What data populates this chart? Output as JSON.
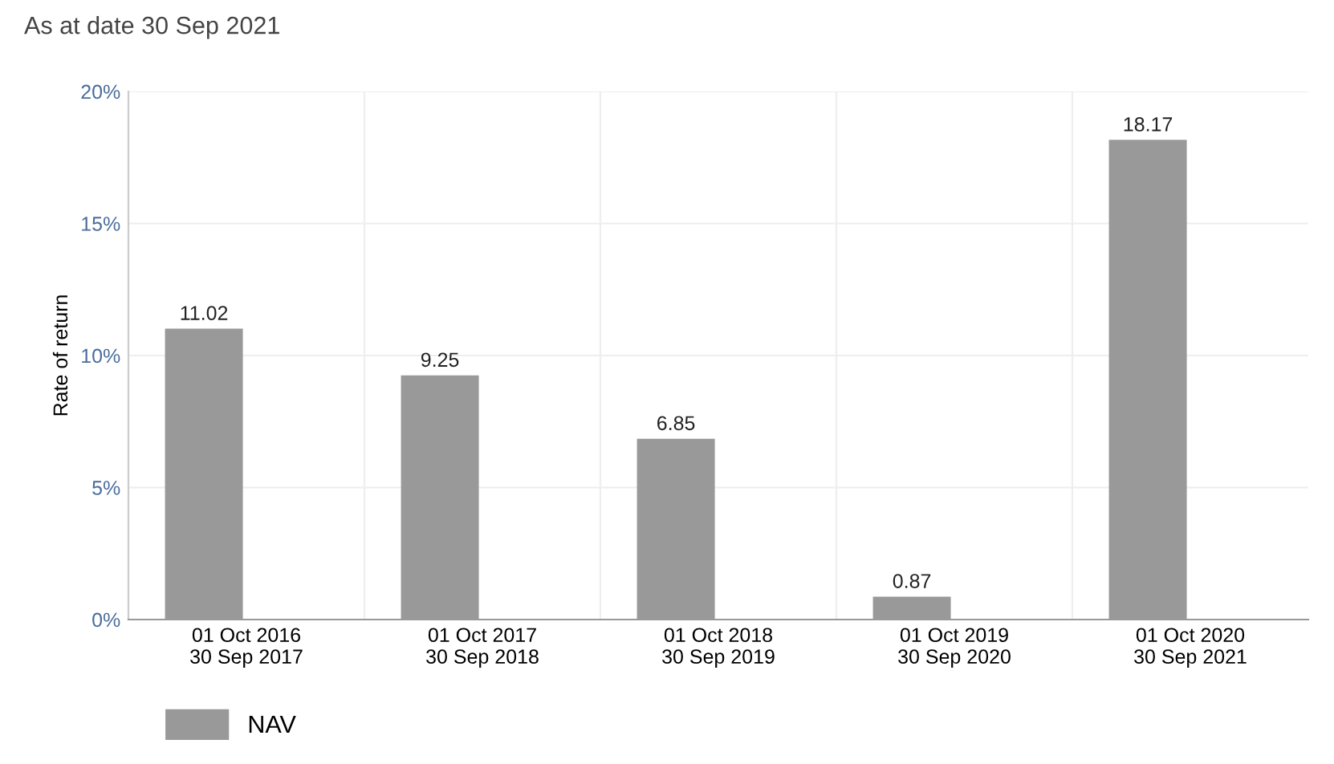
{
  "chart_data": {
    "type": "bar",
    "title": "As at date 30 Sep 2021",
    "ylabel": "Rate of return",
    "categories": [
      "01 Oct 2016\n30 Sep 2017",
      "01 Oct 2017\n30 Sep 2018",
      "01 Oct 2018\n30 Sep 2019",
      "01 Oct 2019\n30 Sep 2020",
      "01 Oct 2020\n30 Sep 2021"
    ],
    "series": [
      {
        "name": "NAV",
        "color": "#999999",
        "values": [
          11.02,
          9.25,
          6.85,
          0.87,
          18.17
        ]
      }
    ],
    "ylim": [
      0,
      20
    ],
    "yticks": [
      {
        "value": 0,
        "label": "0%"
      },
      {
        "value": 5,
        "label": "5%"
      },
      {
        "value": 10,
        "label": "10%"
      },
      {
        "value": 15,
        "label": "15%"
      },
      {
        "value": 20,
        "label": "20%"
      }
    ],
    "data_labels": true,
    "grid": true,
    "legend": "bottom left"
  }
}
